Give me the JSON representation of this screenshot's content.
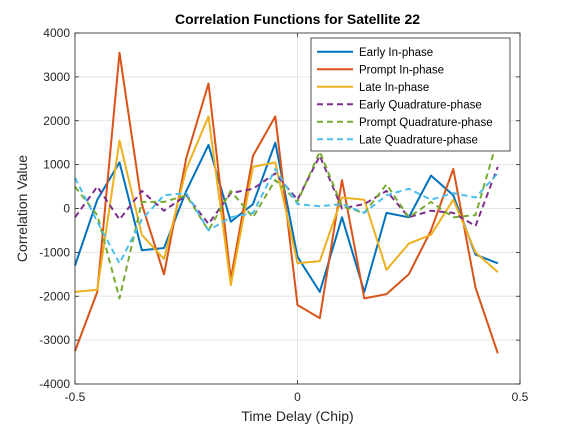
{
  "chart_data": {
    "type": "line",
    "title": "Correlation Functions for Satellite 22",
    "xlabel": "Time Delay (Chip)",
    "ylabel": "Correlation Value",
    "xlim": [
      -0.5,
      0.5
    ],
    "ylim": [
      -4000,
      4000
    ],
    "xticks": [
      -0.5,
      0,
      0.5
    ],
    "xtick_labels": [
      "-0.5",
      "0",
      "0.5"
    ],
    "yticks": [
      -4000,
      -3000,
      -2000,
      -1000,
      0,
      1000,
      2000,
      3000,
      4000
    ],
    "ytick_labels": [
      "-4000",
      "-3000",
      "-2000",
      "-1000",
      "0",
      "1000",
      "2000",
      "3000",
      "4000"
    ],
    "grid": true,
    "legend_position": "top-right",
    "x": [
      -0.5,
      -0.45,
      -0.4,
      -0.35,
      -0.3,
      -0.25,
      -0.2,
      -0.15,
      -0.1,
      -0.05,
      0,
      0.05,
      0.1,
      0.15,
      0.2,
      0.25,
      0.3,
      0.35,
      0.4,
      0.45
    ],
    "series": [
      {
        "name": "Early In-phase",
        "color": "#0072BD",
        "dash": "solid",
        "values": [
          -1300,
          200,
          1050,
          -950,
          -900,
          400,
          1450,
          -300,
          100,
          1500,
          -1100,
          -1900,
          -200,
          -1900,
          -100,
          -200,
          750,
          300,
          -1050,
          -1250
        ]
      },
      {
        "name": "Prompt In-phase",
        "color": "#D95319",
        "dash": "solid",
        "values": [
          -3250,
          -1900,
          3550,
          100,
          -1500,
          1150,
          2850,
          -1600,
          1200,
          2100,
          -2200,
          -2500,
          650,
          -2050,
          -1950,
          -1500,
          -500,
          900,
          -1800,
          -3300
        ]
      },
      {
        "name": "Late In-phase",
        "color": "#EDB120",
        "dash": "solid",
        "values": [
          -1900,
          -1850,
          1550,
          -600,
          -1150,
          900,
          2100,
          -1750,
          950,
          1050,
          -1250,
          -1200,
          250,
          200,
          -1400,
          -800,
          -600,
          200,
          -1000,
          -1450
        ]
      },
      {
        "name": "Early Quadrature-phase",
        "color": "#7E2F8E",
        "dash": "dashed",
        "values": [
          -200,
          500,
          -250,
          400,
          -50,
          300,
          -350,
          350,
          450,
          800,
          200,
          1200,
          0,
          100,
          400,
          -200,
          -50,
          -100,
          -400,
          950
        ]
      },
      {
        "name": "Prompt Quadrature-phase",
        "color": "#77AC30",
        "dash": "dashed",
        "values": [
          500,
          -150,
          -2050,
          150,
          150,
          300,
          -500,
          400,
          -200,
          650,
          150,
          1300,
          50,
          -100,
          550,
          -200,
          150,
          -200,
          -150,
          1600
        ]
      },
      {
        "name": "Late Quadrature-phase",
        "color": "#4DBEEE",
        "dash": "dashed",
        "values": [
          700,
          -300,
          -1250,
          -250,
          300,
          350,
          -500,
          -200,
          -100,
          900,
          100,
          50,
          100,
          -100,
          300,
          450,
          200,
          350,
          250,
          800
        ]
      }
    ]
  }
}
